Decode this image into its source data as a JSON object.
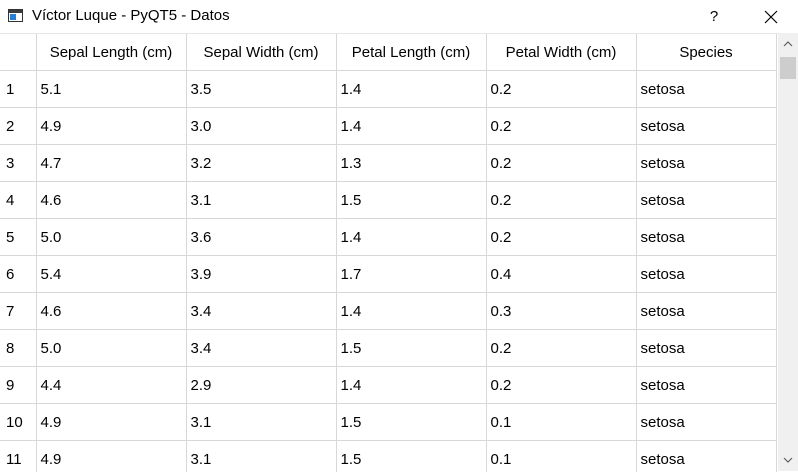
{
  "window": {
    "title": "Víctor Luque - PyQT5 - Datos",
    "help_label": "?"
  },
  "table": {
    "columns": [
      "Sepal Length (cm)",
      "Sepal Width (cm)",
      "Petal Length (cm)",
      "Petal Width (cm)",
      "Species"
    ],
    "rows": [
      {
        "index": "1",
        "cells": [
          "5.1",
          "3.5",
          "1.4",
          "0.2",
          "setosa"
        ]
      },
      {
        "index": "2",
        "cells": [
          "4.9",
          "3.0",
          "1.4",
          "0.2",
          "setosa"
        ]
      },
      {
        "index": "3",
        "cells": [
          "4.7",
          "3.2",
          "1.3",
          "0.2",
          "setosa"
        ]
      },
      {
        "index": "4",
        "cells": [
          "4.6",
          "3.1",
          "1.5",
          "0.2",
          "setosa"
        ]
      },
      {
        "index": "5",
        "cells": [
          "5.0",
          "3.6",
          "1.4",
          "0.2",
          "setosa"
        ]
      },
      {
        "index": "6",
        "cells": [
          "5.4",
          "3.9",
          "1.7",
          "0.4",
          "setosa"
        ]
      },
      {
        "index": "7",
        "cells": [
          "4.6",
          "3.4",
          "1.4",
          "0.3",
          "setosa"
        ]
      },
      {
        "index": "8",
        "cells": [
          "5.0",
          "3.4",
          "1.5",
          "0.2",
          "setosa"
        ]
      },
      {
        "index": "9",
        "cells": [
          "4.4",
          "2.9",
          "1.4",
          "0.2",
          "setosa"
        ]
      },
      {
        "index": "10",
        "cells": [
          "4.9",
          "3.1",
          "1.5",
          "0.1",
          "setosa"
        ]
      },
      {
        "index": "11",
        "cells": [
          "4.9",
          "3.1",
          "1.5",
          "0.1",
          "setosa"
        ]
      }
    ]
  }
}
